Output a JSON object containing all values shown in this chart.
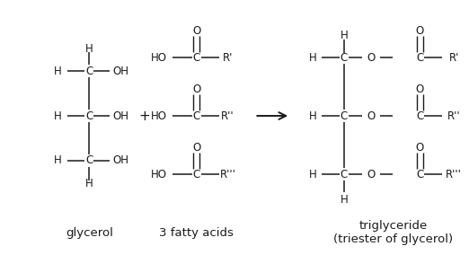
{
  "bg_color": "#ffffff",
  "text_color": "#1a1a1a",
  "line_color": "#1a1a1a",
  "fig_width": 5.22,
  "fig_height": 2.84,
  "dpi": 100,
  "fs": 8.5,
  "fs_label": 9.5,
  "glycerol_label": "glycerol",
  "fatty_acids_label": "3 fatty acids",
  "triglyceride_label": "triglyceride\n(triester of glycerol)"
}
